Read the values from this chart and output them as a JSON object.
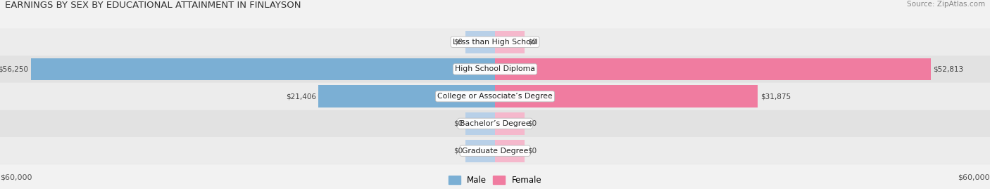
{
  "title": "EARNINGS BY SEX BY EDUCATIONAL ATTAINMENT IN FINLAYSON",
  "source": "Source: ZipAtlas.com",
  "categories": [
    "Less than High School",
    "High School Diploma",
    "College or Associate’s Degree",
    "Bachelor’s Degree",
    "Graduate Degree"
  ],
  "male_values": [
    0,
    56250,
    21406,
    0,
    0
  ],
  "female_values": [
    0,
    52813,
    31875,
    0,
    0
  ],
  "max_val": 60000,
  "zero_bar_val": 3600,
  "male_color": "#7bafd4",
  "female_color": "#f07ca0",
  "male_color_light": "#b8d0e8",
  "female_color_light": "#f5b8cc",
  "row_colors": [
    "#ececec",
    "#e2e2e2",
    "#ececec",
    "#e2e2e2",
    "#ececec"
  ],
  "label_color": "#555555",
  "title_color": "#333333",
  "axis_label_left": "$60,000",
  "axis_label_right": "$60,000",
  "legend_male": "Male",
  "legend_female": "Female",
  "figsize": [
    14.06,
    2.69
  ],
  "dpi": 100
}
